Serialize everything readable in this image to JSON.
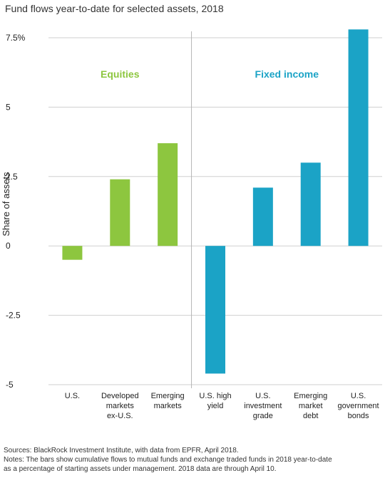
{
  "chart_data": {
    "type": "bar",
    "title": "Fund flows year-to-date for selected assets, 2018",
    "ylabel": "Share of assets",
    "xlabel": "",
    "ylim": [
      -5,
      7.5
    ],
    "yticks": [
      {
        "value": 7.5,
        "label": "7.5%"
      },
      {
        "value": 5,
        "label": "5"
      },
      {
        "value": 2.5,
        "label": "2.5"
      },
      {
        "value": 0,
        "label": "0"
      },
      {
        "value": -2.5,
        "label": "-2.5"
      },
      {
        "value": -5,
        "label": "-5"
      }
    ],
    "grid": "horizontal",
    "categories": [
      "U.S.",
      "Developed markets ex-U.S.",
      "Emerging markets",
      "U.S. high yield",
      "U.S. investment grade",
      "Emerging market debt",
      "U.S. government bonds"
    ],
    "category_lines": [
      [
        "U.S."
      ],
      [
        "Developed",
        "markets",
        "ex-U.S."
      ],
      [
        "Emerging",
        "markets"
      ],
      [
        "U.S. high",
        "yield"
      ],
      [
        "U.S.",
        "investment",
        "grade"
      ],
      [
        "Emerging",
        "market",
        "debt"
      ],
      [
        "U.S.",
        "government",
        "bonds"
      ]
    ],
    "values": [
      -0.5,
      2.4,
      3.7,
      -4.6,
      2.1,
      3.0,
      7.8
    ],
    "groups": [
      {
        "name": "Equities",
        "start": 0,
        "end": 2,
        "color": "#8dc63f"
      },
      {
        "name": "Fixed income",
        "start": 3,
        "end": 6,
        "color": "#1ba3c6"
      }
    ]
  },
  "notes": {
    "sources": "Sources: BlackRock Investment Institute, with data from EPFR, April 2018.",
    "notes_line1": "Notes: The bars show cumulative flows to mutual funds and exchange traded funds in 2018 year-to-date",
    "notes_line2": "as a percentage of starting assets under management. 2018 data are through April 10."
  }
}
